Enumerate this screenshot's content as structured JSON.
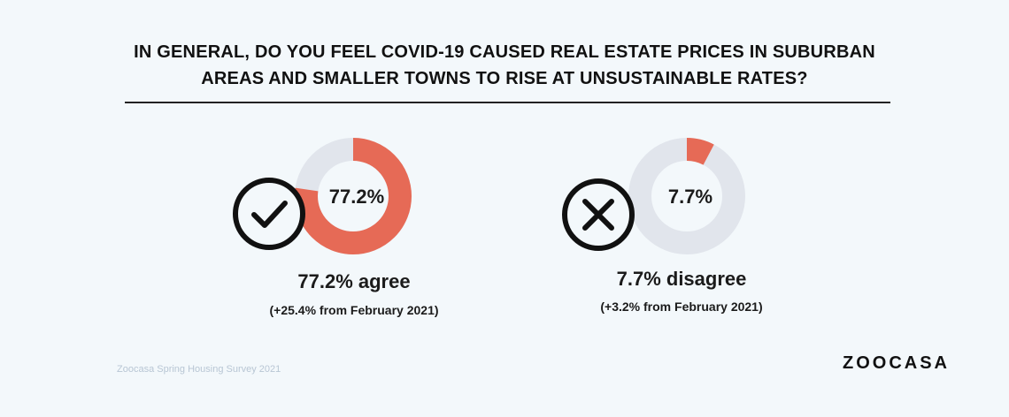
{
  "title": {
    "line1": "IN GENERAL, DO YOU FEEL COVID-19 CAUSED REAL ESTATE PRICES IN SUBURBAN",
    "line2": "AREAS AND SMALLER TOWNS TO RISE AT UNSUSTAINABLE RATES?"
  },
  "colors": {
    "accent": "#e66a56",
    "track": "#e1e5ec",
    "background": "#f3f8fb",
    "text": "#1b1b1b"
  },
  "chart_data": [
    {
      "type": "pie",
      "variant": "donut",
      "icon": "checkmark-circle-icon",
      "value": 77.2,
      "center_label": "77.2%",
      "label": "77.2% agree",
      "sublabel": "(+25.4% from February 2021)"
    },
    {
      "type": "pie",
      "variant": "donut",
      "icon": "x-circle-icon",
      "value": 7.7,
      "center_label": "7.7%",
      "label": "7.7% disagree",
      "sublabel": "(+3.2% from February 2021)"
    }
  ],
  "footer": {
    "source": "Zoocasa Spring Housing Survey 2021",
    "brand": "ZOOCASA"
  }
}
